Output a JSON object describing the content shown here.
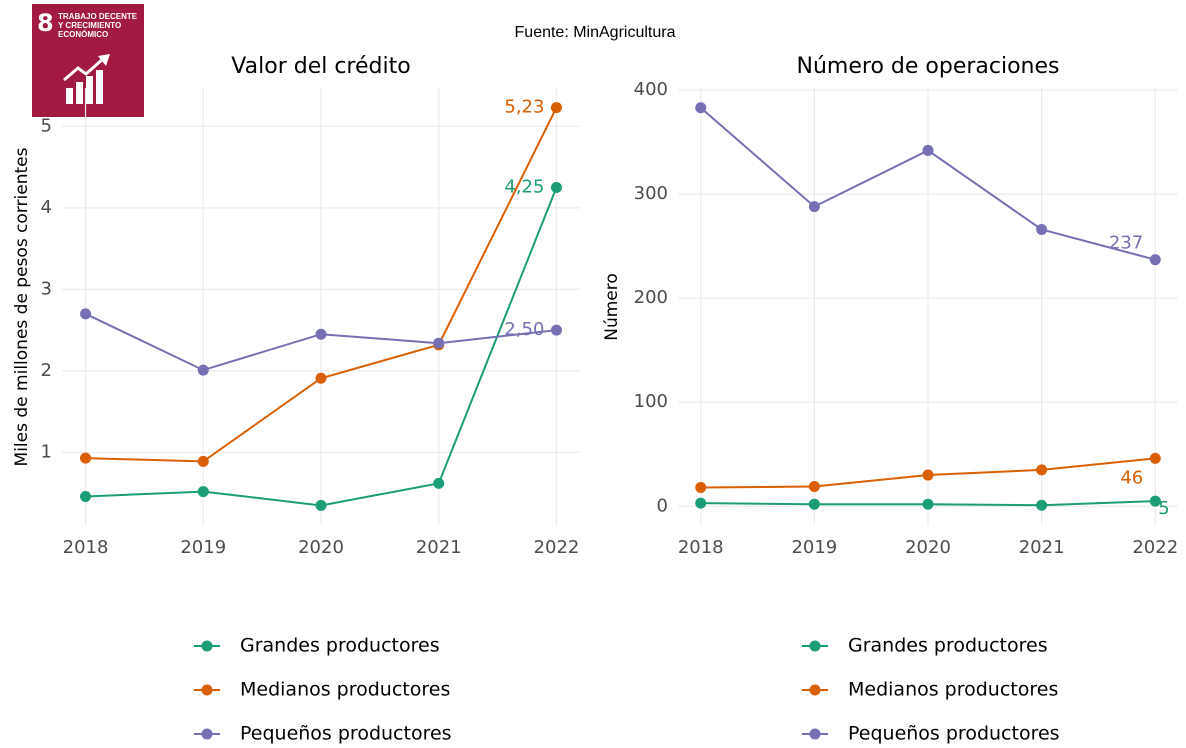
{
  "source": "Fuente: MinAgricultura",
  "logo": {
    "number": "8",
    "lines": [
      "TRABAJO DECENTE",
      "Y CRECIMIENTO",
      "ECONÓMICO"
    ]
  },
  "chart_data": [
    {
      "type": "line",
      "title": "Valor del crédito",
      "y_label": "Miles de millones de pesos corrientes",
      "x": [
        2018,
        2019,
        2020,
        2021,
        2022
      ],
      "xlim": [
        2017.8,
        2022.2
      ],
      "xticks": [
        2018,
        2019,
        2020,
        2021,
        2022
      ],
      "ylim": [
        0.11,
        5.47
      ],
      "yticks": [
        1,
        2,
        3,
        4,
        5
      ],
      "grid": true,
      "legend": "bottom",
      "series": [
        {
          "name": "Grandes productores",
          "color": "#1b9e77",
          "values": [
            0.46,
            0.52,
            0.35,
            0.62,
            4.25
          ],
          "value_labels": [
            null,
            null,
            null,
            null,
            "4,25"
          ]
        },
        {
          "name": "Medianos productores",
          "color": "#d95f02",
          "values": [
            0.93,
            0.89,
            1.91,
            2.32,
            5.23
          ],
          "value_labels": [
            null,
            null,
            null,
            null,
            "5,23"
          ]
        },
        {
          "name": "Pequeños productores",
          "color": "#7570b3",
          "values": [
            2.7,
            2.01,
            2.45,
            2.34,
            2.5
          ],
          "value_labels": [
            null,
            null,
            null,
            null,
            "2,50"
          ]
        }
      ]
    },
    {
      "type": "line",
      "title": "Número de operaciones",
      "y_label": "Número",
      "x": [
        2018,
        2019,
        2020,
        2021,
        2022
      ],
      "xlim": [
        2017.8,
        2022.2
      ],
      "xticks": [
        2018,
        2019,
        2020,
        2021,
        2022
      ],
      "ylim": [
        -18,
        402
      ],
      "yticks": [
        0,
        100,
        200,
        300,
        400
      ],
      "grid": true,
      "legend": "bottom",
      "series": [
        {
          "name": "Grandes productores",
          "color": "#1b9e77",
          "values": [
            3,
            2,
            2,
            1,
            5
          ],
          "value_labels": [
            null,
            null,
            null,
            null,
            "5"
          ]
        },
        {
          "name": "Medianos productores",
          "color": "#d95f02",
          "values": [
            18,
            19,
            30,
            35,
            46
          ],
          "value_labels": [
            null,
            null,
            null,
            null,
            "46"
          ]
        },
        {
          "name": "Pequeños productores",
          "color": "#7570b3",
          "values": [
            383,
            288,
            342,
            266,
            237
          ],
          "value_labels": [
            null,
            null,
            null,
            null,
            "237"
          ]
        }
      ]
    }
  ]
}
